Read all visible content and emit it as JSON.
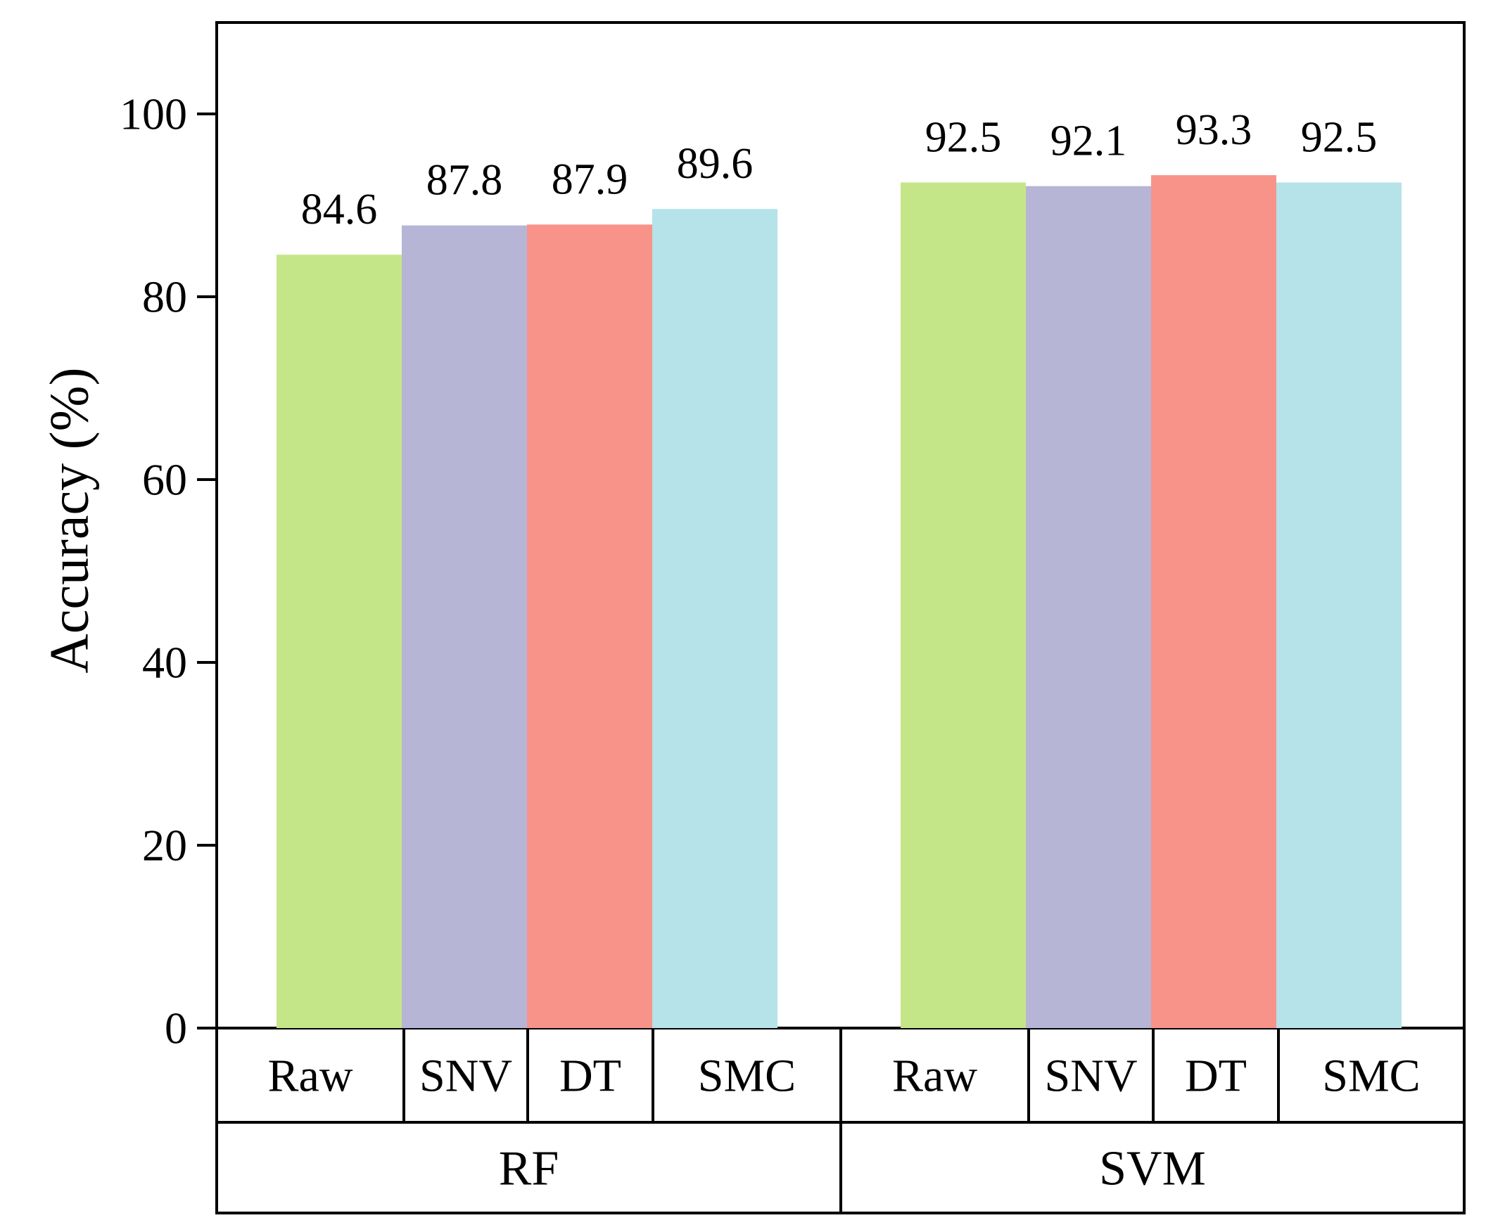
{
  "chart_data": {
    "type": "bar",
    "title": "",
    "xlabel": "",
    "ylabel": "Accuracy (%)",
    "ylim": [
      0,
      110
    ],
    "yticks": [
      0,
      20,
      40,
      60,
      80,
      100
    ],
    "ytick_labels": [
      "0",
      "20",
      "40",
      "60",
      "80",
      "100"
    ],
    "grid": false,
    "legend": "none",
    "groups": [
      {
        "name": "RF",
        "bars": [
          {
            "category": "Raw",
            "value": 84.6,
            "label": "84.6",
            "color": "#c5e688"
          },
          {
            "category": "SNV",
            "value": 87.8,
            "label": "87.8",
            "color": "#b7b5d5"
          },
          {
            "category": "DT",
            "value": 87.9,
            "label": "87.9",
            "color": "#f8938a"
          },
          {
            "category": "SMC",
            "value": 89.6,
            "label": "89.6",
            "color": "#b5e3e9"
          }
        ]
      },
      {
        "name": "SVM",
        "bars": [
          {
            "category": "Raw",
            "value": 92.5,
            "label": "92.5",
            "color": "#c5e688"
          },
          {
            "category": "SNV",
            "value": 92.1,
            "label": "92.1",
            "color": "#b7b5d5"
          },
          {
            "category": "DT",
            "value": 93.3,
            "label": "93.3",
            "color": "#f8938a"
          },
          {
            "category": "SMC",
            "value": 92.5,
            "label": "92.5",
            "color": "#b5e3e9"
          }
        ]
      }
    ]
  }
}
